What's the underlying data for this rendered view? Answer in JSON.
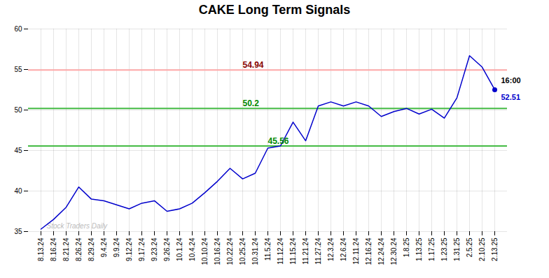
{
  "chart_data": {
    "type": "line",
    "title": "CAKE Long Term Signals",
    "categories": [
      "8.13.24",
      "8.16.24",
      "8.21.24",
      "8.26.24",
      "8.29.24",
      "9.4.24",
      "9.9.24",
      "9.12.24",
      "9.17.24",
      "9.23.24",
      "9.26.24",
      "10.1.24",
      "10.4.24",
      "10.10.24",
      "10.16.24",
      "10.22.24",
      "10.25.24",
      "10.31.24",
      "11.5.24",
      "11.12.24",
      "11.15.24",
      "11.21.24",
      "11.27.24",
      "12.3.24",
      "12.6.24",
      "12.11.24",
      "12.16.24",
      "12.24.24",
      "12.30.24",
      "1.8.25",
      "1.13.25",
      "1.17.25",
      "1.23.25",
      "1.31.25",
      "2.5.25",
      "2.10.25",
      "2.13.25"
    ],
    "values": [
      35.3,
      36.5,
      38.0,
      40.5,
      39.0,
      38.8,
      38.3,
      37.8,
      38.5,
      38.8,
      37.5,
      37.8,
      38.5,
      39.8,
      41.2,
      42.8,
      41.5,
      42.2,
      45.3,
      45.56,
      48.5,
      46.2,
      50.5,
      51.0,
      50.5,
      51.0,
      50.5,
      49.2,
      49.8,
      50.2,
      49.5,
      50.1,
      49.0,
      51.5,
      56.7,
      55.3,
      52.51
    ],
    "color": "#0000cc",
    "ylim": [
      35,
      60
    ],
    "yticks": [
      35,
      40,
      45,
      50,
      55,
      60
    ],
    "grid": true,
    "reference_lines": [
      {
        "value": 54.94,
        "label": "54.94",
        "color": "#ffaaaa",
        "label_color": "#880000",
        "at": "10.25.24"
      },
      {
        "value": 50.2,
        "label": "50.2",
        "color": "#44bb44",
        "label_color": "#008800",
        "at": "10.25.24"
      },
      {
        "value": 45.56,
        "label": "45.56",
        "color": "#44bb44",
        "label_color": "#008800",
        "at": "11.5.24"
      }
    ],
    "last_point_labels": [
      {
        "text": "16:00",
        "color": "#000000"
      },
      {
        "text": "52.51",
        "color": "#0000cc"
      }
    ],
    "watermark": {
      "text": "Stock Traders Daily",
      "color": "#bbbbbb"
    }
  }
}
